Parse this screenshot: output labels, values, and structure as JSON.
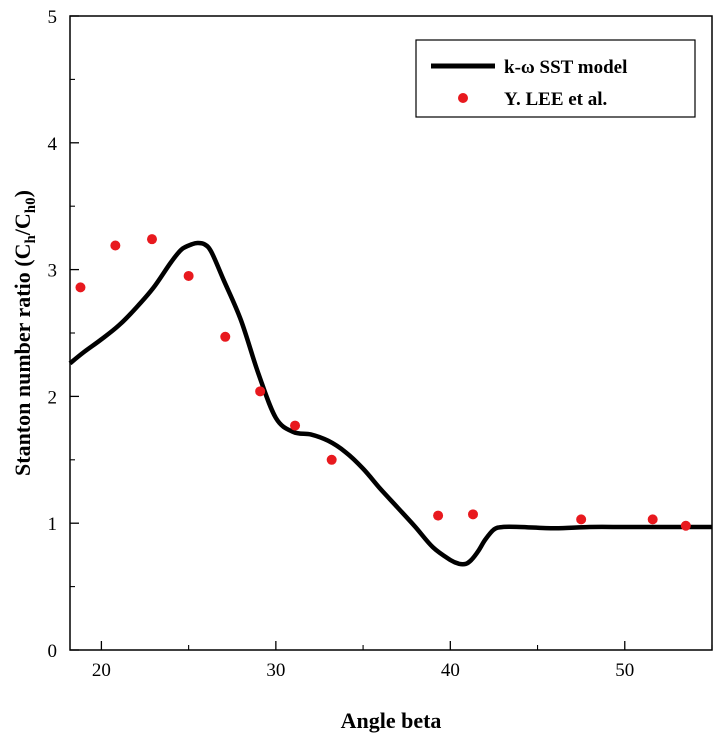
{
  "chart_data": {
    "type": "line",
    "title": "",
    "xlabel": "Angle beta",
    "ylabel": {
      "prefix": "Stanton number ratio (C",
      "sub1": "h",
      "mid": "/C",
      "sub2": "h0",
      "suffix": ")"
    },
    "xlim": [
      18.2,
      55
    ],
    "ylim": [
      0,
      5
    ],
    "xticks": [
      20,
      30,
      40,
      50
    ],
    "yticks": [
      0,
      1,
      2,
      3,
      4,
      5
    ],
    "grid": false,
    "legend_position": "top-right",
    "series": [
      {
        "name": "k-ω SST model",
        "kind": "line",
        "color": "#000000",
        "x": [
          18.2,
          19,
          20,
          21,
          22,
          23,
          24,
          24.6,
          25.2,
          25.5,
          25.9,
          26.3,
          27,
          28,
          29,
          30,
          31,
          32,
          33,
          34,
          35,
          36,
          37,
          38,
          39,
          40,
          40.5,
          40.9,
          41.2,
          41.6,
          42,
          42.5,
          43,
          44,
          46,
          48,
          50,
          52,
          54,
          55
        ],
        "y": [
          2.26,
          2.35,
          2.45,
          2.56,
          2.7,
          2.86,
          3.06,
          3.16,
          3.2,
          3.21,
          3.2,
          3.14,
          2.92,
          2.6,
          2.18,
          1.83,
          1.72,
          1.7,
          1.65,
          1.56,
          1.43,
          1.27,
          1.12,
          0.97,
          0.81,
          0.71,
          0.68,
          0.68,
          0.71,
          0.78,
          0.87,
          0.95,
          0.97,
          0.97,
          0.96,
          0.97,
          0.97,
          0.97,
          0.97,
          0.97
        ]
      },
      {
        "name": "Y. LEE et al.",
        "kind": "scatter",
        "color": "#e8191e",
        "x": [
          18.8,
          20.8,
          22.9,
          25.0,
          27.1,
          29.1,
          31.1,
          33.2,
          39.3,
          41.3,
          47.5,
          51.6,
          53.5
        ],
        "y": [
          2.86,
          3.19,
          3.24,
          2.95,
          2.47,
          2.04,
          1.77,
          1.5,
          1.06,
          1.07,
          1.03,
          1.03,
          0.98
        ]
      }
    ]
  }
}
